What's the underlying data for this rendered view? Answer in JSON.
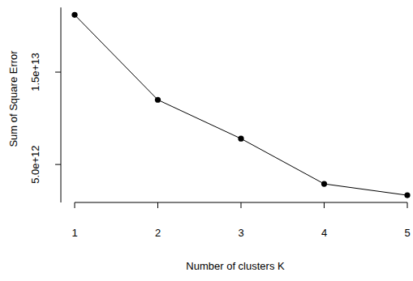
{
  "chart_data": {
    "type": "line",
    "xlabel": "Number of clusters K",
    "ylabel": "Sum of Square Error",
    "x": [
      1,
      2,
      3,
      4,
      5
    ],
    "values": [
      21200000000000.0,
      12000000000000.0,
      7800000000000.0,
      2900000000000.0,
      1670000000000.0
    ],
    "color": "#000000",
    "marker": "circle",
    "line_style": "solid",
    "xlim": [
      1,
      5
    ],
    "xticks": [
      1,
      2,
      3,
      4,
      5
    ],
    "ylim": [
      890000000000.0,
      22000000000000.0
    ],
    "yticks": [
      {
        "value": 5000000000000.0,
        "label": "5.0e+12"
      },
      {
        "value": 15000000000000.0,
        "label": "1.5e+13"
      }
    ],
    "grid": false
  }
}
